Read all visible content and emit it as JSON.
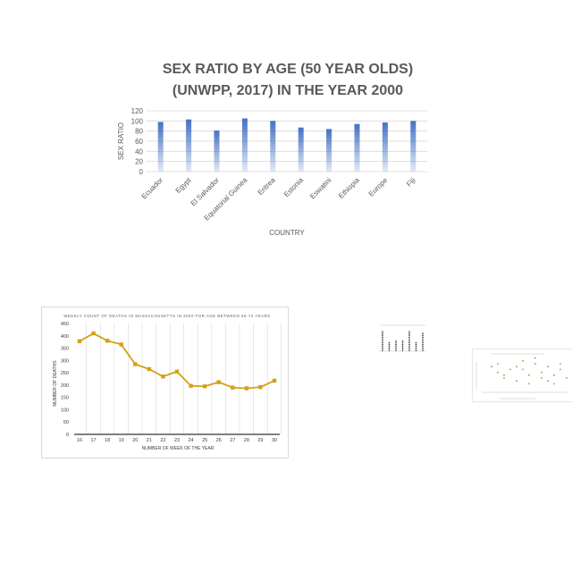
{
  "chart_data": [
    {
      "type": "bar",
      "title_line1": "SEX RATIO BY AGE (50 YEAR OLDS)",
      "title_line2": "(UNWPP, 2017) IN THE YEAR 2000",
      "xlabel": "COUNTRY",
      "ylabel": "SEX RATIO",
      "ylim": [
        0,
        120
      ],
      "yticks": [
        0,
        20,
        40,
        60,
        80,
        100,
        120
      ],
      "categories": [
        "Ecuador",
        "Egypt",
        "El Salvador",
        "Equatorial Guinea",
        "Eritrea",
        "Estonia",
        "Eswatini",
        "Ethiopia",
        "Europe",
        "Fiji"
      ],
      "values": [
        98,
        103,
        81,
        105,
        100,
        87,
        84,
        94,
        97,
        100
      ],
      "bar_color": "#4472c4",
      "grid": true
    },
    {
      "type": "line",
      "title": "WEEKLY COUNT OF DEATHS IN MASSACHUSETTS IN 2020 FOR AGE BETWEEN 65-74 YEARS",
      "xlabel": "NUMBER OF WEEK OF THE YEAR",
      "ylabel": "NUMBER OF DEATHS",
      "ylim": [
        0,
        450
      ],
      "yticks": [
        0,
        50,
        100,
        150,
        200,
        250,
        300,
        350,
        400,
        450
      ],
      "x": [
        16,
        17,
        18,
        19,
        20,
        21,
        22,
        23,
        24,
        25,
        26,
        27,
        28,
        29,
        30
      ],
      "values": [
        378,
        410,
        380,
        365,
        285,
        265,
        235,
        255,
        197,
        195,
        212,
        190,
        187,
        192,
        218
      ],
      "line_color": "#d4a017",
      "grid": true
    },
    {
      "type": "bar",
      "values": [
        22,
        10,
        12,
        11,
        22,
        10,
        20
      ],
      "dot_color": "#333333"
    },
    {
      "type": "scatter",
      "points": [
        [
          1,
          9
        ],
        [
          2,
          7
        ],
        [
          2,
          10
        ],
        [
          3,
          6
        ],
        [
          3,
          5
        ],
        [
          4,
          8
        ],
        [
          5,
          9
        ],
        [
          5,
          4
        ],
        [
          6,
          11
        ],
        [
          6,
          8
        ],
        [
          7,
          3
        ],
        [
          7,
          6
        ],
        [
          8,
          10
        ],
        [
          8,
          12
        ],
        [
          9,
          5
        ],
        [
          9,
          7
        ],
        [
          10,
          9
        ],
        [
          10,
          4
        ],
        [
          11,
          6
        ],
        [
          11,
          3
        ],
        [
          12,
          8
        ],
        [
          12,
          10
        ],
        [
          13,
          5
        ]
      ],
      "point_color": "#70ad47"
    }
  ]
}
